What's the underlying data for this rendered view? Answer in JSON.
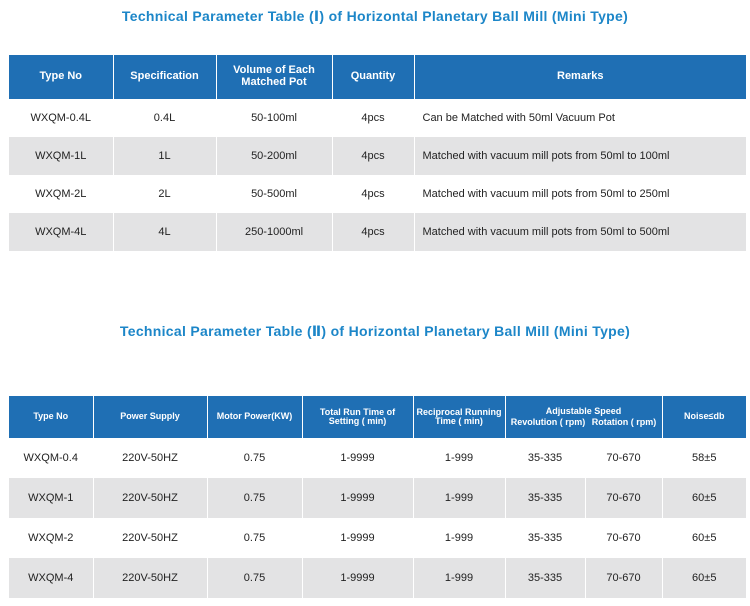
{
  "table1": {
    "title": "Technical Parameter Table (Ⅰ) of Horizontal Planetary Ball Mill (Mini Type)",
    "headers": [
      "Type No",
      "Specification",
      "Volume of Each Matched Pot",
      "Quantity",
      "Remarks"
    ],
    "rows": [
      [
        "WXQM-0.4L",
        "0.4L",
        "50-100ml",
        "4pcs",
        "Can be Matched with 50ml Vacuum Pot"
      ],
      [
        "WXQM-1L",
        "1L",
        "50-200ml",
        "4pcs",
        "Matched with vacuum mill pots from 50ml to 100ml"
      ],
      [
        "WXQM-2L",
        "2L",
        "50-500ml",
        "4pcs",
        "Matched with vacuum mill pots from 50ml to 250ml"
      ],
      [
        "WXQM-4L",
        "4L",
        "250-1000ml",
        "4pcs",
        "Matched with vacuum mill pots from 50ml to 500ml"
      ]
    ]
  },
  "table2": {
    "title": "Technical Parameter Table (Ⅱ) of Horizontal Planetary Ball Mill (Mini Type)",
    "headers": {
      "type_no": "Type No",
      "power_supply": "Power Supply",
      "motor_power": "Motor Power(KW)",
      "run_time": "Total Run Time of Setting ( min)",
      "reciprocal": "Reciprocal Running Time ( min)",
      "speed": "Adjustable Speed",
      "revolution": "Revolution ( rpm)",
      "rotation": "Rotation ( rpm)",
      "noise": "Noise≤db"
    },
    "rows": [
      [
        "WXQM-0.4",
        "220V-50HZ",
        "0.75",
        "1-9999",
        "1-999",
        "35-335",
        "70-670",
        "58±5"
      ],
      [
        "WXQM-1",
        "220V-50HZ",
        "0.75",
        "1-9999",
        "1-999",
        "35-335",
        "70-670",
        "60±5"
      ],
      [
        "WXQM-2",
        "220V-50HZ",
        "0.75",
        "1-9999",
        "1-999",
        "35-335",
        "70-670",
        "60±5"
      ],
      [
        "WXQM-4",
        "220V-50HZ",
        "0.75",
        "1-9999",
        "1-999",
        "35-335",
        "70-670",
        "60±5"
      ]
    ]
  }
}
